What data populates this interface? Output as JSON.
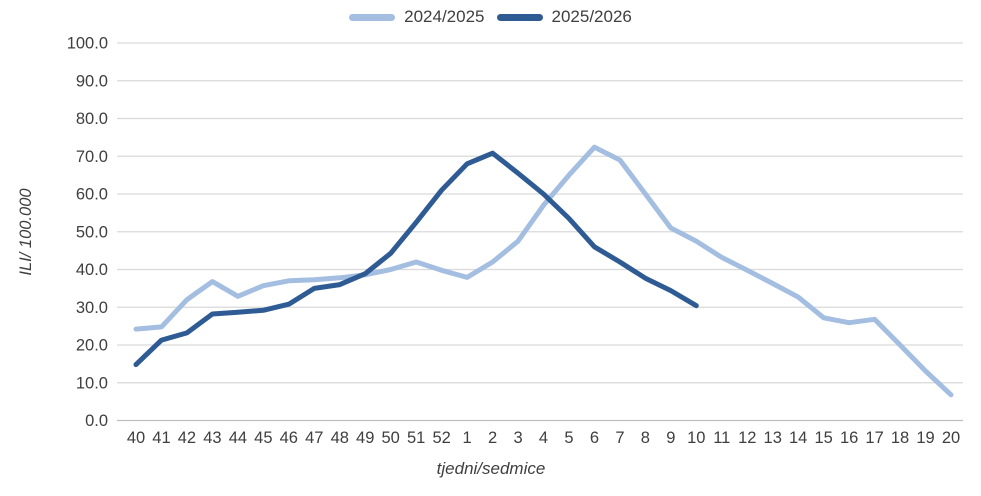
{
  "chart_data": {
    "type": "line",
    "title": "",
    "xlabel": "tjedni/sedmice",
    "ylabel": "ILI/ 100.000",
    "ylim": [
      0,
      100
    ],
    "y_tick_step": 10,
    "y_tick_labels": [
      "0.0",
      "10.0",
      "20.0",
      "30.0",
      "40.0",
      "50.0",
      "60.0",
      "70.0",
      "80.0",
      "90.0",
      "100.0"
    ],
    "categories": [
      "40",
      "41",
      "42",
      "43",
      "44",
      "45",
      "46",
      "47",
      "48",
      "49",
      "50",
      "51",
      "52",
      "1",
      "2",
      "3",
      "4",
      "5",
      "6",
      "7",
      "8",
      "9",
      "10",
      "11",
      "12",
      "13",
      "14",
      "15",
      "16",
      "17",
      "18",
      "19",
      "20"
    ],
    "grid": "horizontal",
    "legend_position": "top-center",
    "grid_color": "#D9D9D9",
    "axis_line_color": "#BFBFBF",
    "text_color": "#3F3F3F",
    "series": [
      {
        "name": "2024/2025",
        "color": "#A3BEE0",
        "values": [
          24.2,
          24.8,
          32.0,
          36.8,
          32.9,
          35.7,
          37.0,
          37.3,
          37.8,
          38.6,
          40.0,
          42.0,
          39.8,
          37.9,
          42.0,
          47.5,
          57.0,
          65.0,
          72.4,
          69.0,
          60.0,
          51.0,
          47.5,
          43.2,
          39.8,
          36.3,
          32.7,
          27.2,
          25.9,
          26.8,
          20.0,
          13.1,
          6.8
        ]
      },
      {
        "name": "2025/2026",
        "color": "#2F5B94",
        "values": [
          14.8,
          21.3,
          23.2,
          28.2,
          28.7,
          29.2,
          30.8,
          35.0,
          36.0,
          38.9,
          44.3,
          52.5,
          61.0,
          68.0,
          70.8,
          65.5,
          60.0,
          53.5,
          46.0,
          42.0,
          37.7,
          34.4,
          30.4
        ]
      }
    ]
  }
}
